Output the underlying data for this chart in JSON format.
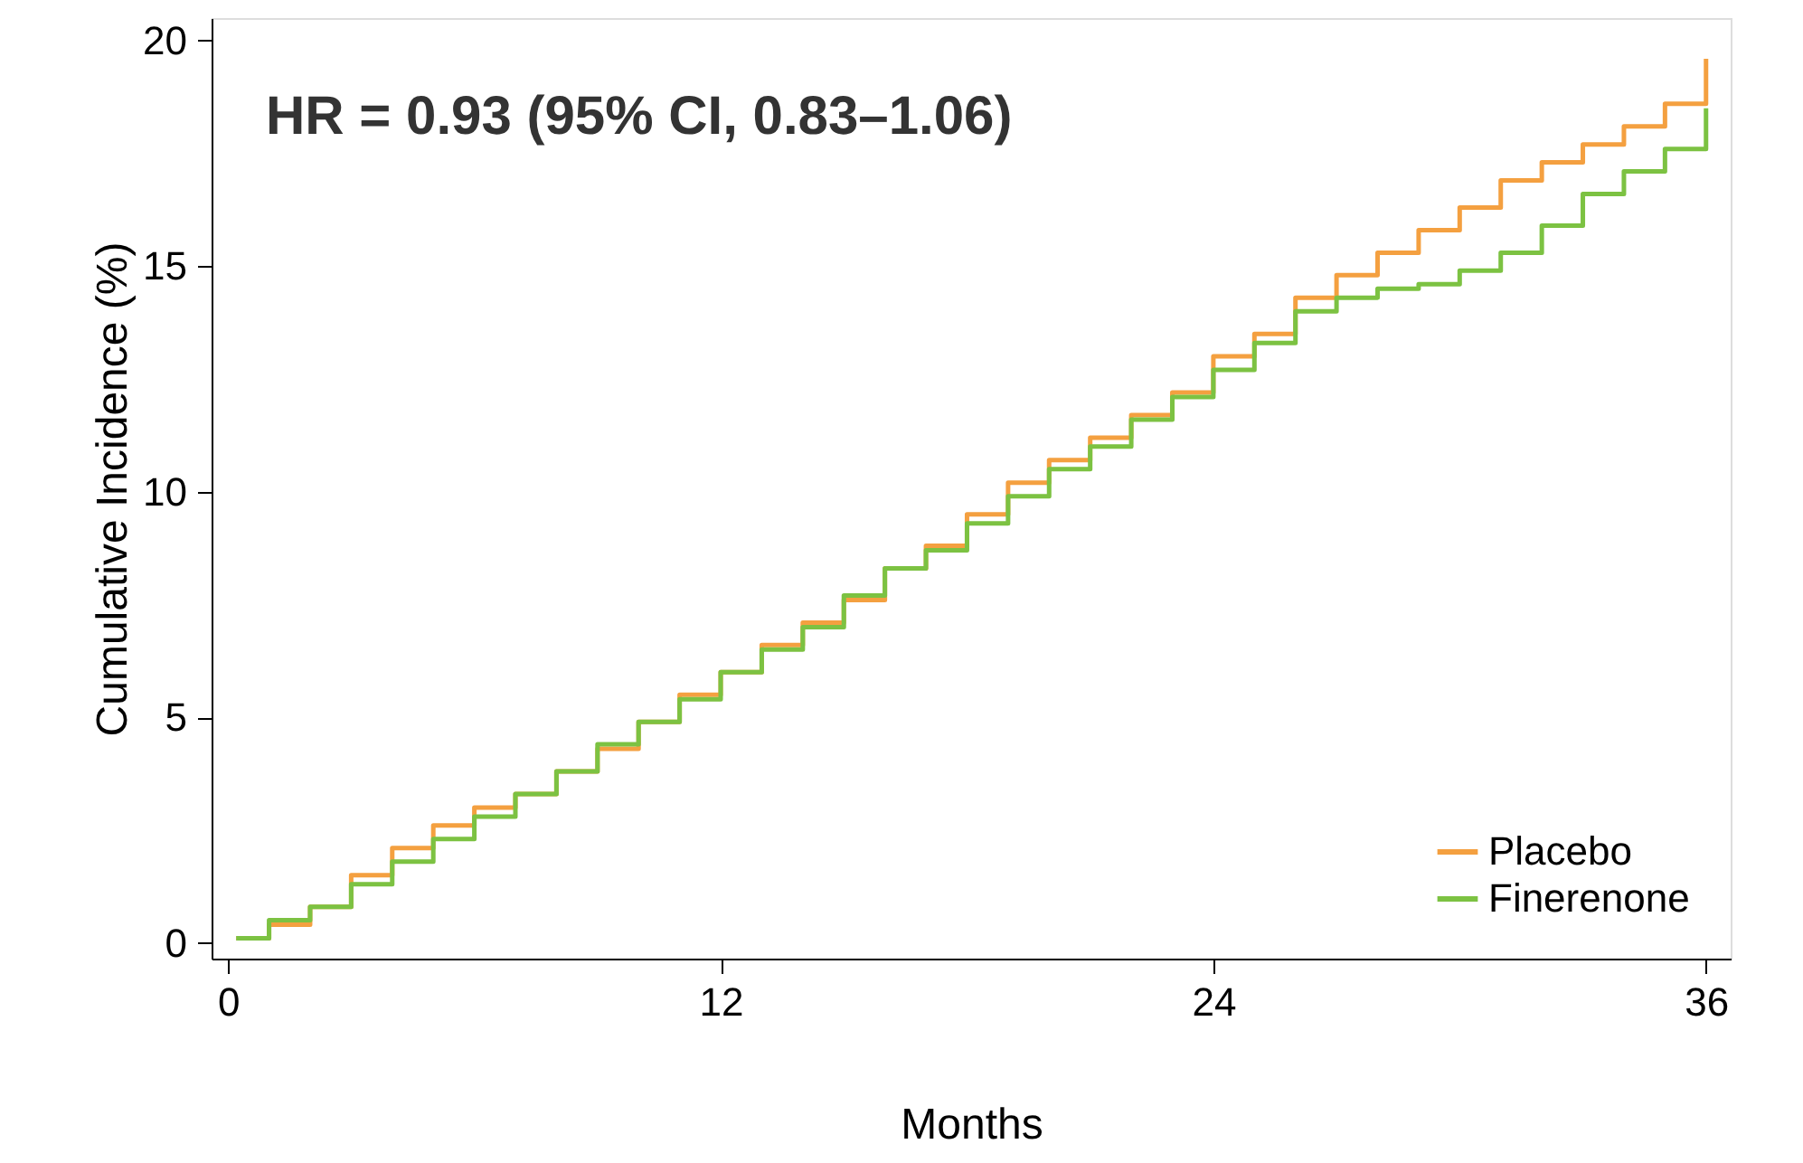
{
  "chart_data": {
    "type": "step",
    "xlabel": "Months",
    "ylabel": "Cumulative Incidence (%)",
    "annotations": [
      "HR = 0.93 (95% CI, 0.83–1.06)"
    ],
    "x": [
      0.2,
      1,
      2,
      3,
      4,
      5,
      6,
      7,
      8,
      9,
      10,
      11,
      12,
      13,
      14,
      15,
      16,
      17,
      18,
      19,
      20,
      21,
      22,
      23,
      24,
      25,
      26,
      27,
      28,
      29,
      30,
      31,
      32,
      33,
      34,
      35,
      36
    ],
    "series": [
      {
        "name": "Placebo",
        "color": "#f4a040",
        "values": [
          0.1,
          0.4,
          0.8,
          1.5,
          2.1,
          2.6,
          3.0,
          3.3,
          3.8,
          4.3,
          4.9,
          5.5,
          6.0,
          6.6,
          7.1,
          7.6,
          8.3,
          8.8,
          9.5,
          10.2,
          10.7,
          11.2,
          11.7,
          12.2,
          13.0,
          13.5,
          14.3,
          14.8,
          15.3,
          15.8,
          16.3,
          16.9,
          17.3,
          17.7,
          18.1,
          18.6,
          19.6
        ]
      },
      {
        "name": "Finerenone",
        "color": "#7cc242",
        "values": [
          0.1,
          0.5,
          0.8,
          1.3,
          1.8,
          2.3,
          2.8,
          3.3,
          3.8,
          4.4,
          4.9,
          5.4,
          6.0,
          6.5,
          7.0,
          7.7,
          8.3,
          8.7,
          9.3,
          9.9,
          10.5,
          11.0,
          11.6,
          12.1,
          12.7,
          13.3,
          14.0,
          14.3,
          14.5,
          14.6,
          14.9,
          15.3,
          15.9,
          16.6,
          17.1,
          17.6,
          18.5
        ]
      }
    ],
    "xlim": [
      -0.4,
      36.6
    ],
    "ylim": [
      -0.35,
      20.5
    ],
    "xticks": [
      0,
      12,
      24,
      36
    ],
    "yticks": [
      0,
      5,
      10,
      15,
      20
    ],
    "legend": "bottom right",
    "grid": false,
    "marker": "none"
  }
}
